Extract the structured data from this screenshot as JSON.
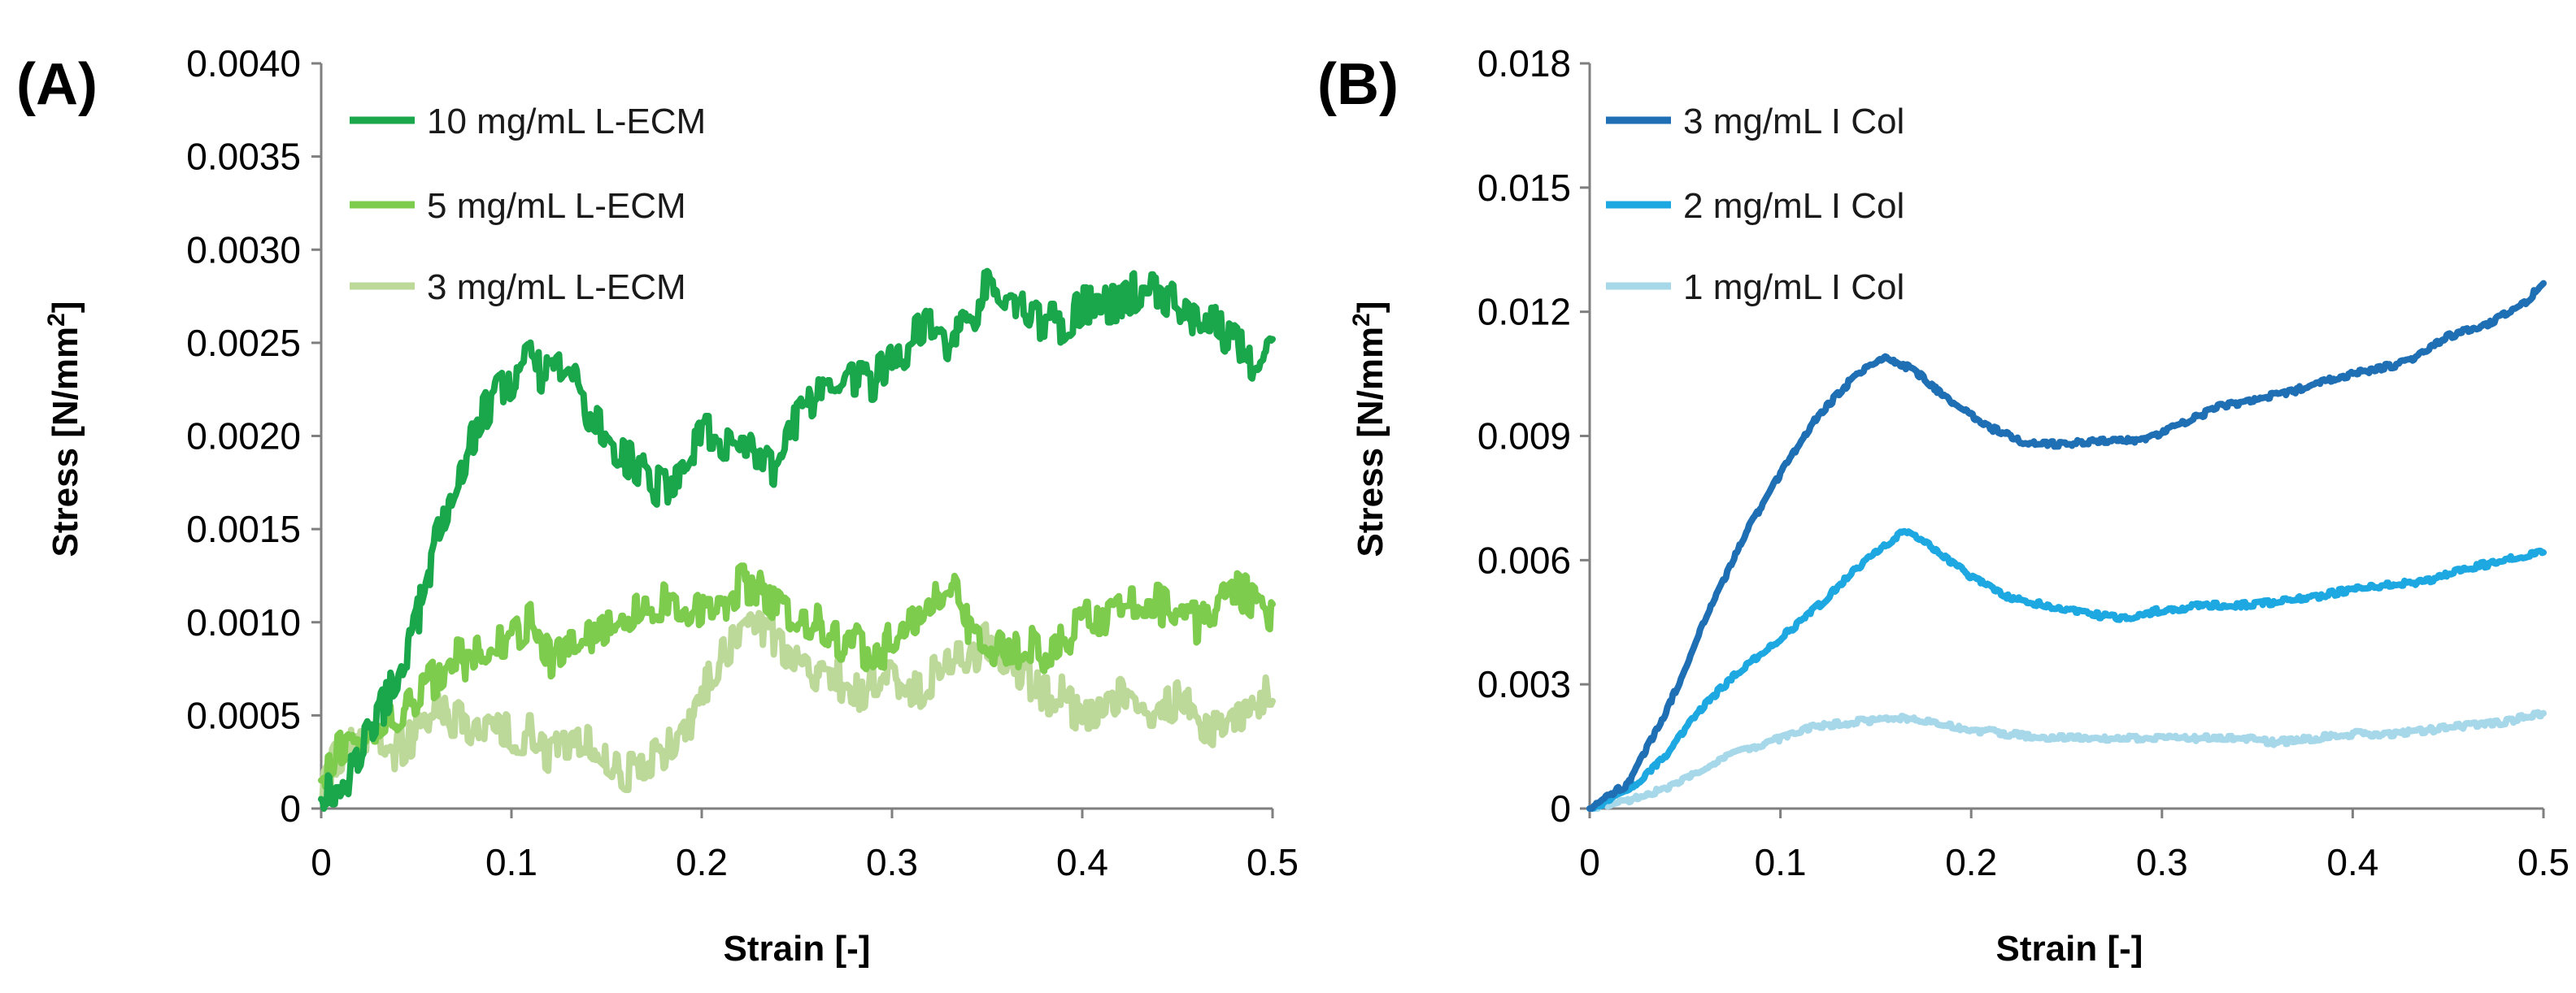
{
  "chart_data": [
    {
      "type": "line",
      "panel_label": "(A)",
      "xlabel": "Strain [-]",
      "ylabel_main": "Stress [N/mm",
      "ylabel_sup": "2",
      "ylabel_end": "]",
      "xlim": [
        0,
        0.5
      ],
      "ylim": [
        0,
        0.004
      ],
      "xticks": [
        0,
        0.1,
        0.2,
        0.3,
        0.4,
        0.5
      ],
      "xtick_labels": [
        "0",
        "0.1",
        "0.2",
        "0.3",
        "0.4",
        "0.5"
      ],
      "yticks": [
        0,
        0.0005,
        0.001,
        0.0015,
        0.002,
        0.0025,
        0.003,
        0.0035,
        0.004
      ],
      "ytick_labels": [
        "0",
        "0.0005",
        "0.0010",
        "0.0015",
        "0.0020",
        "0.0025",
        "0.0030",
        "0.0035",
        "0.0040"
      ],
      "legend_position": "top-left",
      "noise": 0.00011,
      "series": [
        {
          "name": "10 mg/mL L-ECM",
          "color": "#1aa64a",
          "x": [
            0,
            0.01,
            0.02,
            0.03,
            0.04,
            0.05,
            0.06,
            0.07,
            0.08,
            0.09,
            0.1,
            0.11,
            0.12,
            0.13,
            0.14,
            0.15,
            0.16,
            0.17,
            0.18,
            0.19,
            0.2,
            0.21,
            0.22,
            0.23,
            0.24,
            0.25,
            0.26,
            0.27,
            0.28,
            0.29,
            0.3,
            0.31,
            0.32,
            0.33,
            0.34,
            0.35,
            0.36,
            0.37,
            0.38,
            0.39,
            0.4,
            0.41,
            0.42,
            0.43,
            0.44,
            0.45,
            0.46,
            0.47,
            0.48,
            0.49,
            0.5
          ],
          "y": [
            0.0001,
            0.0001,
            0.0003,
            0.0005,
            0.0007,
            0.001,
            0.0014,
            0.0017,
            0.002,
            0.0022,
            0.0023,
            0.0024,
            0.0023,
            0.0024,
            0.0021,
            0.002,
            0.0019,
            0.0018,
            0.0017,
            0.0018,
            0.002,
            0.002,
            0.0019,
            0.0019,
            0.0018,
            0.0021,
            0.0022,
            0.0022,
            0.0023,
            0.0023,
            0.0024,
            0.0025,
            0.0026,
            0.0025,
            0.0026,
            0.0028,
            0.0027,
            0.0027,
            0.0026,
            0.0026,
            0.0027,
            0.0027,
            0.0027,
            0.0028,
            0.0028,
            0.0027,
            0.0026,
            0.0026,
            0.0025,
            0.0024,
            0.0025
          ]
        },
        {
          "name": "5 mg/mL L-ECM",
          "color": "#7dcc4e",
          "x": [
            0,
            0.01,
            0.02,
            0.03,
            0.04,
            0.05,
            0.06,
            0.07,
            0.08,
            0.09,
            0.1,
            0.11,
            0.12,
            0.13,
            0.14,
            0.15,
            0.16,
            0.17,
            0.18,
            0.19,
            0.2,
            0.21,
            0.22,
            0.23,
            0.24,
            0.25,
            0.26,
            0.27,
            0.28,
            0.29,
            0.3,
            0.31,
            0.32,
            0.33,
            0.34,
            0.35,
            0.36,
            0.37,
            0.38,
            0.39,
            0.4,
            0.41,
            0.42,
            0.43,
            0.44,
            0.45,
            0.46,
            0.47,
            0.48,
            0.49,
            0.5
          ],
          "y": [
            0.0002,
            0.0003,
            0.0004,
            0.0004,
            0.0005,
            0.0006,
            0.0007,
            0.0008,
            0.0008,
            0.0009,
            0.0009,
            0.001,
            0.0008,
            0.0009,
            0.0009,
            0.001,
            0.001,
            0.0011,
            0.0011,
            0.001,
            0.0011,
            0.0011,
            0.0012,
            0.0012,
            0.0011,
            0.001,
            0.001,
            0.0009,
            0.0009,
            0.0008,
            0.0009,
            0.001,
            0.0011,
            0.0012,
            0.001,
            0.0009,
            0.0008,
            0.0009,
            0.0008,
            0.0009,
            0.001,
            0.001,
            0.0011,
            0.0011,
            0.0011,
            0.001,
            0.001,
            0.0011,
            0.0012,
            0.0011,
            0.001
          ]
        },
        {
          "name": "3 mg/mL L-ECM",
          "color": "#bcd99a",
          "x": [
            0,
            0.01,
            0.02,
            0.03,
            0.04,
            0.05,
            0.06,
            0.07,
            0.08,
            0.09,
            0.1,
            0.11,
            0.12,
            0.13,
            0.14,
            0.15,
            0.16,
            0.17,
            0.18,
            0.19,
            0.2,
            0.21,
            0.22,
            0.23,
            0.24,
            0.25,
            0.26,
            0.27,
            0.28,
            0.29,
            0.3,
            0.31,
            0.32,
            0.33,
            0.34,
            0.35,
            0.36,
            0.37,
            0.38,
            0.39,
            0.4,
            0.41,
            0.42,
            0.43,
            0.44,
            0.45,
            0.46,
            0.47,
            0.48,
            0.49,
            0.5
          ],
          "y": [
            0.0001,
            0.0003,
            0.0004,
            0.0004,
            0.0003,
            0.0004,
            0.0005,
            0.0005,
            0.0004,
            0.0005,
            0.0004,
            0.0004,
            0.0003,
            0.0003,
            0.0004,
            0.0003,
            0.0002,
            0.0002,
            0.0003,
            0.0004,
            0.0006,
            0.0008,
            0.0009,
            0.001,
            0.0009,
            0.0008,
            0.0007,
            0.0007,
            0.0006,
            0.0007,
            0.0007,
            0.0006,
            0.0007,
            0.0008,
            0.0008,
            0.0009,
            0.0008,
            0.0007,
            0.0006,
            0.0006,
            0.0005,
            0.0005,
            0.0006,
            0.0005,
            0.0005,
            0.0006,
            0.0005,
            0.0004,
            0.0005,
            0.0006,
            0.0006
          ]
        }
      ]
    },
    {
      "type": "line",
      "panel_label": "(B)",
      "xlabel": "Strain [-]",
      "ylabel_main": "Stress [N/mm",
      "ylabel_sup": "2",
      "ylabel_end": "]",
      "xlim": [
        0,
        0.5
      ],
      "ylim": [
        0,
        0.018
      ],
      "xticks": [
        0,
        0.1,
        0.2,
        0.3,
        0.4,
        0.5
      ],
      "xtick_labels": [
        "0",
        "0.1",
        "0.2",
        "0.3",
        "0.4",
        "0.5"
      ],
      "yticks": [
        0,
        0.003,
        0.006,
        0.009,
        0.012,
        0.015,
        0.018
      ],
      "ytick_labels": [
        "0",
        "0.003",
        "0.006",
        "0.009",
        "0.012",
        "0.015",
        "0.018"
      ],
      "legend_position": "top-left",
      "noise": 7e-05,
      "series": [
        {
          "name": "3 mg/mL I Col",
          "color": "#1f6fb4",
          "x": [
            0,
            0.02,
            0.04,
            0.06,
            0.08,
            0.1,
            0.12,
            0.14,
            0.155,
            0.17,
            0.19,
            0.21,
            0.23,
            0.25,
            0.27,
            0.29,
            0.31,
            0.33,
            0.35,
            0.37,
            0.39,
            0.41,
            0.43,
            0.45,
            0.47,
            0.49,
            0.5
          ],
          "y": [
            0,
            0.0006,
            0.0023,
            0.0045,
            0.0065,
            0.0081,
            0.0095,
            0.0105,
            0.0109,
            0.0106,
            0.0098,
            0.0092,
            0.0088,
            0.0088,
            0.0089,
            0.0089,
            0.0093,
            0.0097,
            0.0099,
            0.0101,
            0.0104,
            0.0106,
            0.0108,
            0.0114,
            0.0117,
            0.0122,
            0.0127
          ]
        },
        {
          "name": "2 mg/mL I Col",
          "color": "#1ea8e2",
          "x": [
            0,
            0.02,
            0.04,
            0.06,
            0.08,
            0.1,
            0.12,
            0.14,
            0.165,
            0.18,
            0.2,
            0.22,
            0.24,
            0.26,
            0.28,
            0.3,
            0.32,
            0.34,
            0.36,
            0.38,
            0.4,
            0.42,
            0.44,
            0.46,
            0.48,
            0.5
          ],
          "y": [
            0,
            0.0004,
            0.0013,
            0.0025,
            0.0034,
            0.0041,
            0.0049,
            0.0058,
            0.0067,
            0.0063,
            0.0056,
            0.0051,
            0.0049,
            0.0047,
            0.0046,
            0.0048,
            0.0049,
            0.0049,
            0.005,
            0.0051,
            0.0053,
            0.0054,
            0.0055,
            0.0058,
            0.006,
            0.0062
          ]
        },
        {
          "name": "1 mg/mL I Col",
          "color": "#a6d8ea",
          "x": [
            0,
            0.02,
            0.04,
            0.06,
            0.08,
            0.1,
            0.12,
            0.14,
            0.16,
            0.18,
            0.2,
            0.22,
            0.24,
            0.26,
            0.28,
            0.3,
            0.32,
            0.34,
            0.36,
            0.38,
            0.4,
            0.42,
            0.44,
            0.46,
            0.48,
            0.5
          ],
          "y": [
            0,
            0.0002,
            0.0005,
            0.001,
            0.0014,
            0.0017,
            0.002,
            0.0021,
            0.0022,
            0.0021,
            0.0019,
            0.0018,
            0.0017,
            0.0017,
            0.0017,
            0.0017,
            0.0017,
            0.0017,
            0.0016,
            0.0017,
            0.0018,
            0.0018,
            0.0019,
            0.002,
            0.0021,
            0.0023
          ]
        }
      ]
    }
  ]
}
